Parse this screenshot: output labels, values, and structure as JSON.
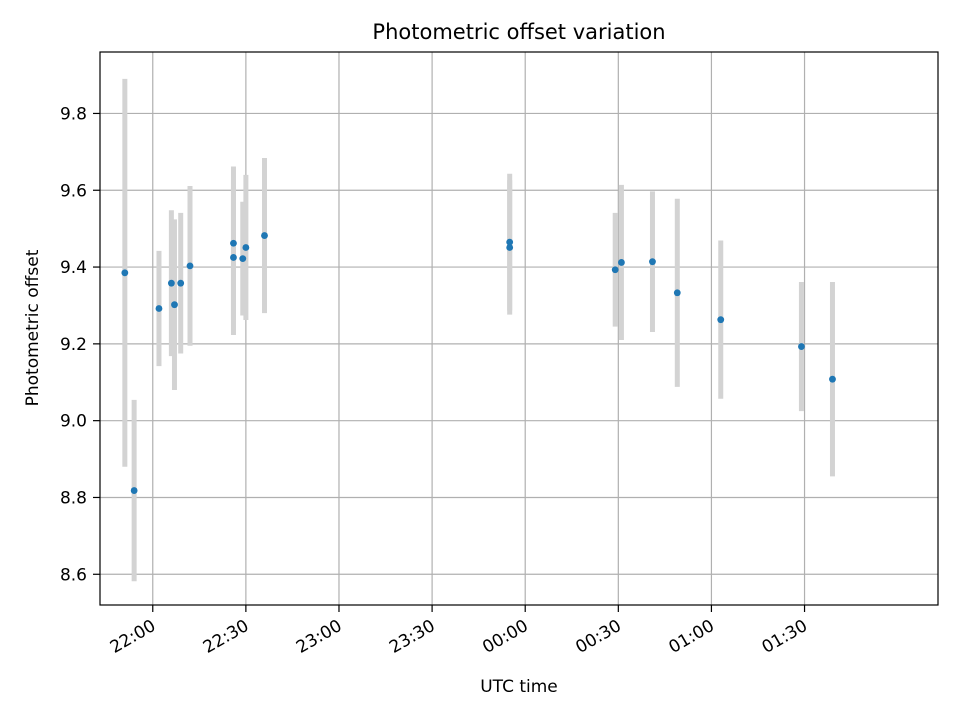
{
  "chart_data": {
    "type": "scatter",
    "title": "Photometric offset variation",
    "xlabel": "UTC time",
    "ylabel": "Photometric offset",
    "x_unit": "hours after 00:00 UTC (negative = previous day)",
    "xlim": [
      "21:43",
      "02:13"
    ],
    "ylim": [
      8.52,
      9.96
    ],
    "x_ticks": [
      "22:00",
      "22:30",
      "23:00",
      "23:30",
      "00:00",
      "00:30",
      "01:00",
      "01:30"
    ],
    "y_ticks": [
      "8.6",
      "8.8",
      "9.0",
      "9.2",
      "9.4",
      "9.6",
      "9.8"
    ],
    "grid": true,
    "colors": {
      "points": "#1f77b4",
      "errorbars": "#d3d3d3",
      "grid": "#b0b0b0"
    },
    "points": [
      {
        "t": "21:51",
        "y": 9.385,
        "err": 0.505
      },
      {
        "t": "21:54",
        "y": 8.818,
        "err": 0.236
      },
      {
        "t": "22:02",
        "y": 9.292,
        "err": 0.15
      },
      {
        "t": "22:06",
        "y": 9.358,
        "err": 0.19
      },
      {
        "t": "22:07",
        "y": 9.302,
        "err": 0.222
      },
      {
        "t": "22:09",
        "y": 9.358,
        "err": 0.183
      },
      {
        "t": "22:12",
        "y": 9.403,
        "err": 0.208
      },
      {
        "t": "22:26",
        "y": 9.462,
        "err": 0.2
      },
      {
        "t": "22:26",
        "y": 9.425,
        "err": 0.202
      },
      {
        "t": "22:29",
        "y": 9.422,
        "err": 0.148
      },
      {
        "t": "22:30",
        "y": 9.451,
        "err": 0.189
      },
      {
        "t": "22:36",
        "y": 9.482,
        "err": 0.202
      },
      {
        "t": "23:55",
        "y": 9.465,
        "err": 0.178
      },
      {
        "t": "23:55",
        "y": 9.451,
        "err": 0.175
      },
      {
        "t": "00:29",
        "y": 9.393,
        "err": 0.148
      },
      {
        "t": "00:31",
        "y": 9.412,
        "err": 0.202
      },
      {
        "t": "00:41",
        "y": 9.414,
        "err": 0.183
      },
      {
        "t": "00:49",
        "y": 9.333,
        "err": 0.245
      },
      {
        "t": "01:03",
        "y": 9.263,
        "err": 0.206
      },
      {
        "t": "01:29",
        "y": 9.193,
        "err": 0.168
      },
      {
        "t": "01:39",
        "y": 9.108,
        "err": 0.253
      }
    ]
  }
}
